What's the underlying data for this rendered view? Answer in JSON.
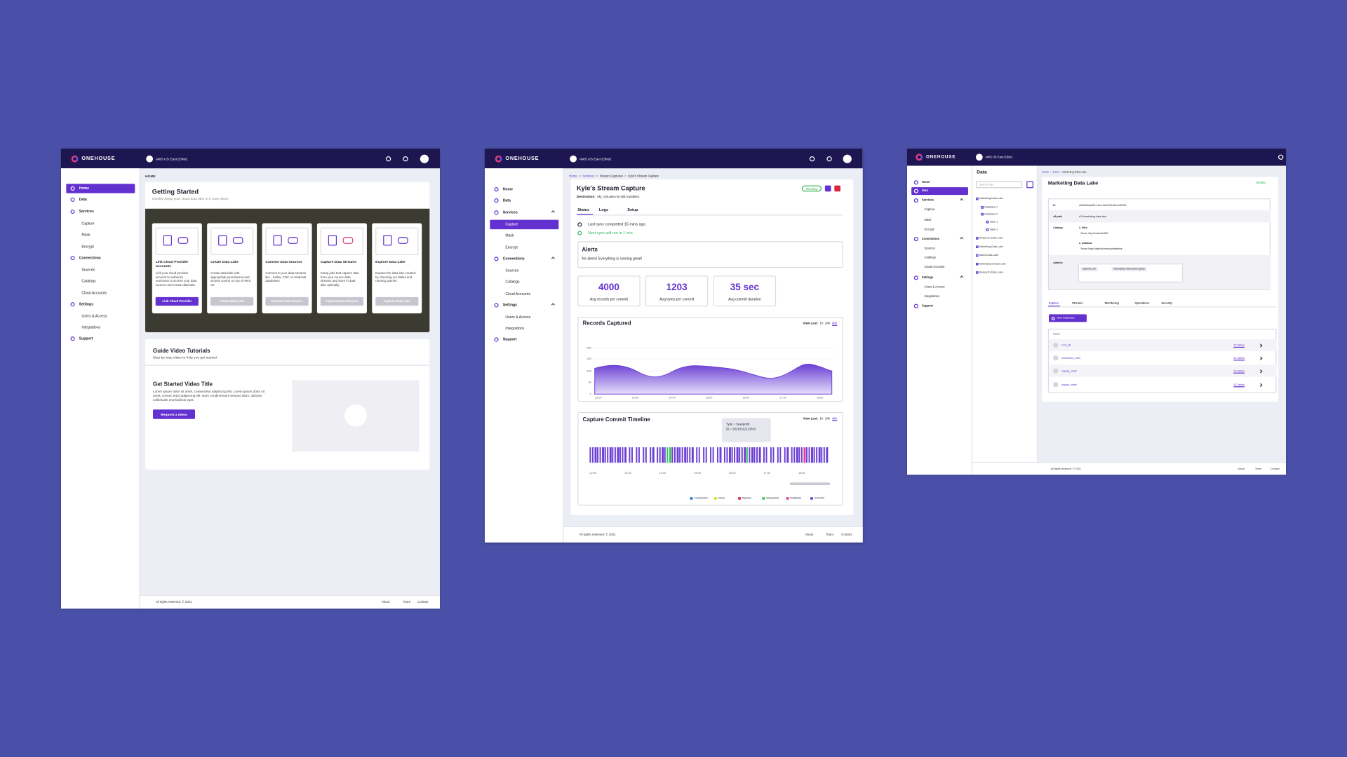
{
  "home": {
    "brand": "ONEHOUSE",
    "region": "AWS US East (Ohio)",
    "breadcrumb": "HOME",
    "nav": [
      "Home",
      "Data",
      "Services",
      "Capture",
      "Mask",
      "Encrypt",
      "Connections",
      "Sources",
      "Catalogs",
      "Cloud Accounts",
      "Settings",
      "Users & Access",
      "Integrations",
      "Support"
    ],
    "getting_started": {
      "title": "Getting Started",
      "subtitle": "Quickly setup your cloud data lake in 5 easy steps",
      "cards": [
        {
          "title": "Link Cloud Provider Accounts",
          "text": "Link your cloud provider account to authorize onehouse to access your data sources and create data lake",
          "button": "Link Cloud Provider"
        },
        {
          "title": "Create Data Lake",
          "text": "Create data lake with appropriate permissions and access control on top of AWS S3",
          "button": "Create Data Lake"
        },
        {
          "title": "Connect Data Sources",
          "text": "Connect to your data streams like - Kafka, CDC or relational databases",
          "button": "Connect Data Source"
        },
        {
          "title": "Capture Data Streams",
          "text": "Setup jobs that capture data from your source data streams and store in data lake optimally",
          "button": "Capture Data Streams"
        },
        {
          "title": "Explore Data Lake",
          "text": "Explore the data lake created by checking out tables and running queries.",
          "button": "Explore Data Lake"
        }
      ]
    },
    "tutorials": {
      "title": "Guide Video Tutorials",
      "subtitle": "Step-by-step video to help you get started.",
      "video_title": "Get Started Video Title",
      "video_text": "Lorem ipsum dolor sit amet, consectetur adipiscing elit. Lorem ipsum dolor sit amet, consec tetur adipiscing elit. Nam condimentum tempus diam, ultricies sollicitudin erat facilisis eget.",
      "button": "Request a demo"
    },
    "footer": {
      "copyright": "All rights reserved. © 2021",
      "links": [
        "About",
        "Team",
        "Contact"
      ]
    }
  },
  "capture": {
    "brand": "ONEHOUSE",
    "region": "AWS US East (Ohio)",
    "nav": [
      "Home",
      "Data",
      "Services",
      "Capture",
      "Mask",
      "Encrypt",
      "Connections",
      "Sources",
      "Catalogs",
      "Cloud Accounts",
      "Settings",
      "Users & Access",
      "Integrations",
      "Support"
    ],
    "breadcrumb": [
      "Home",
      "Services",
      "Stream Captures",
      "Kyle's Stream Capture"
    ],
    "separator": ">",
    "title": "Kyle's Stream Capture",
    "status": "Running",
    "destination_label": "Destination:",
    "destination": "My_S3Lake.my-DB.mytable1",
    "tabs": [
      "Status",
      "Logs",
      "Setup"
    ],
    "last_sync": "Last sync completed 15 mins ago.",
    "next_sync": "Next sync will run in 1 min",
    "alerts": {
      "title": "Alerts",
      "text": "No alerts! Everything is running great!"
    },
    "metrics": [
      {
        "value": "4000",
        "label": "Avg records per commit"
      },
      {
        "value": "1203",
        "label": "Avg bytes per commit"
      },
      {
        "value": "35 sec",
        "label": "Avg commit duration"
      }
    ],
    "records": {
      "title": "Records Captured",
      "view_last": "View Last:",
      "ranges": [
        "1h",
        "24h",
        "48h"
      ],
      "y_labels": [
        "200",
        "150",
        "100",
        "50",
        "0"
      ],
      "x_labels": [
        "12:00",
        "13:00",
        "14:00",
        "15:00",
        "16:00",
        "17:00",
        "18:00"
      ]
    },
    "timeline": {
      "title": "Capture Commit Timeline",
      "view_last": "View Last:",
      "ranges": [
        "1h",
        "24h",
        "48h"
      ],
      "tooltip": [
        "Type = Savepoint",
        "ID = 20210312113343"
      ],
      "x_labels": [
        "12:00",
        "13:00",
        "14:00",
        "15:00",
        "16:00",
        "17:00",
        "18:00"
      ],
      "legend": [
        {
          "name": "Compaction",
          "color": "#1e7be0"
        },
        {
          "name": "Clean",
          "color": "#d9e021"
        },
        {
          "name": "Replace",
          "color": "#d7263d"
        },
        {
          "name": "Savepoints",
          "color": "#3cc45a"
        },
        {
          "name": "Rollbacks",
          "color": "#e0409a"
        },
        {
          "name": "Commits",
          "color": "#6b3fd4"
        }
      ]
    },
    "footer": {
      "copyright": "All rights reserved. © 2021",
      "links": [
        "About",
        "Team",
        "Contact"
      ]
    }
  },
  "data_lake": {
    "brand": "ONEHOUSE",
    "region": "AWS US East (Ohio)",
    "nav": [
      "Home",
      "Data",
      "Services",
      "Capture",
      "Mask",
      "Encrypt",
      "Connections",
      "Sources",
      "Catalogs",
      "Cloud Accounts",
      "Settings",
      "Users & Access",
      "Integrations",
      "Support"
    ],
    "data_title": "Data",
    "search": "Search Files",
    "tree": [
      "Marketing-Data-Lake",
      "Database 1",
      "Database 2",
      "Table 1",
      "Table 2",
      "Research-Data-Lake",
      "Marketing-Data-Lake",
      "Sales-Data-Lake",
      "Marketplace-Data-Lake",
      "Research-Data-Lake"
    ],
    "breadcrumb": [
      "Home",
      "Data",
      "Marketing Data Lake"
    ],
    "separator": ">",
    "title": "Marketing Data Lake",
    "health": "Healthy",
    "details": {
      "id_label": "Id",
      "id": "d9a0b4bdef06-11eb-9a03-0242ac130003",
      "path_label": "s3 path",
      "path": "s3://marketing-data-lake",
      "catalog_label": "Catalog",
      "catalogs": [
        {
          "name": "1. Hive",
          "server": "Server: http://localhost:8020"
        },
        {
          "name": "2. Datahub",
          "server": "Server: https://datahub.network/metastore"
        }
      ],
      "admins_label": "Admins",
      "admins": [
        "x@acme.com",
        "marketplace-data-admins-group"
      ]
    },
    "tabs": [
      "Explore",
      "Streams",
      "Monitoring",
      "Operations",
      "Security"
    ],
    "new_button": "New Database",
    "table_header": "Name",
    "rows": [
      {
        "name": "hms_db",
        "tables": "15 Tables"
      },
      {
        "name": "scheduled_mbm",
        "tables": "15 Tables"
      },
      {
        "name": "supply_chain",
        "tables": "15 Tables"
      },
      {
        "name": "supply_chain",
        "tables": "15 Tables"
      }
    ],
    "footer": {
      "copyright": "All rights reserved. © 2021",
      "links": [
        "About",
        "Team",
        "Contact"
      ]
    }
  }
}
